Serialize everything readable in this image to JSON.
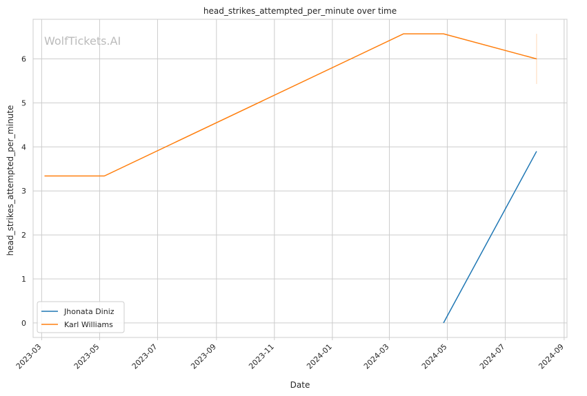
{
  "chart_data": {
    "type": "line",
    "title": "head_strikes_attempted_per_minute over time",
    "xlabel": "Date",
    "ylabel": "head_strikes_attempted_per_minute",
    "watermark": "WolfTickets.AI",
    "x_ticks": [
      "2023-03",
      "2023-05",
      "2023-07",
      "2023-09",
      "2023-11",
      "2024-01",
      "2024-03",
      "2024-05",
      "2024-07",
      "2024-09"
    ],
    "y_ticks": [
      "0",
      "1",
      "2",
      "3",
      "4",
      "5",
      "6"
    ],
    "xlim": [
      "2023-02-20",
      "2024-09-04"
    ],
    "ylim": [
      -0.33,
      6.9
    ],
    "grid": true,
    "legend_position": "lower-left",
    "series": [
      {
        "name": "Jhonata Diniz",
        "color": "#1f77b4",
        "points": [
          {
            "x": "2024-04-27",
            "y": 0.0
          },
          {
            "x": "2024-08-03",
            "y": 3.9
          }
        ]
      },
      {
        "name": "Karl Williams",
        "color": "#ff7f0e",
        "points": [
          {
            "x": "2023-03-04",
            "y": 3.34
          },
          {
            "x": "2023-05-06",
            "y": 3.34
          },
          {
            "x": "2024-03-16",
            "y": 6.57
          },
          {
            "x": "2024-04-27",
            "y": 6.57
          },
          {
            "x": "2024-08-03",
            "y": 6.0
          }
        ]
      }
    ],
    "annotations": [
      {
        "type": "vertical-bar",
        "x": "2024-08-03",
        "y_range": [
          5.43,
          6.57
        ],
        "color": "#ff7f0e"
      }
    ]
  }
}
